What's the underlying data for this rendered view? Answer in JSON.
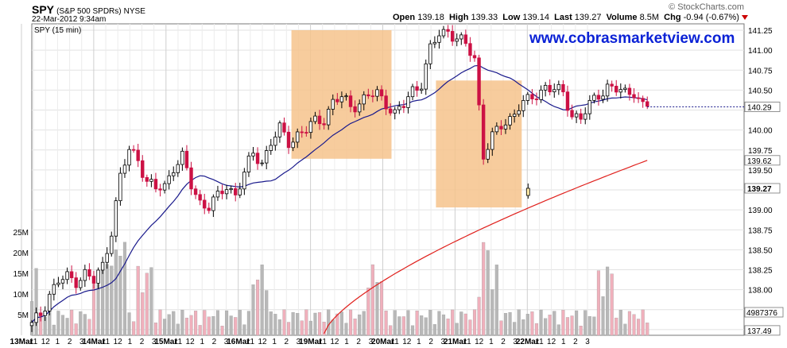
{
  "header": {
    "symbol": "SPY",
    "name": "(S&P 500 SPDRs)",
    "exchange": "NYSE",
    "datetime": "22-Mar-2012 9:34am",
    "brand": "© StockCharts.com",
    "open_label": "Open",
    "open": "139.18",
    "high_label": "High",
    "high": "139.33",
    "low_label": "Low",
    "low": "139.14",
    "last_label": "Last",
    "last": "139.27",
    "volume_label": "Volume",
    "volume": "8.5M",
    "chg_label": "Chg",
    "chg": "-0.94 (-0.67%)"
  },
  "watermark": "www.cobrasmarketview.com",
  "colors": {
    "up": "#000000",
    "down": "#cc1144",
    "ma_short": "#1a1a8c",
    "ma_long": "#e0201c",
    "highlight": "#f6c38c",
    "vol_up": "#b8b8b8",
    "vol_down": "#f0b0bc",
    "grid": "#e2e2e2"
  },
  "chart_data": {
    "type": "candlestick",
    "legend": "SPY (15 min)",
    "price_ticks": [
      137.5,
      137.75,
      138.0,
      138.25,
      138.5,
      138.75,
      139.0,
      139.25,
      139.5,
      139.75,
      140.0,
      140.25,
      140.5,
      140.75,
      141.0,
      141.25
    ],
    "price_tick_labels": [
      "137.5",
      "137.75",
      "138.00",
      "138.25",
      "138.50",
      "138.75",
      "139.00",
      "",
      "139.50",
      "139.75",
      "140.00",
      "",
      "140.50",
      "140.75",
      "141.00",
      "141.25"
    ],
    "ylim": [
      137.42,
      141.35
    ],
    "value_tags": [
      {
        "label": "140.29",
        "value": 140.29
      },
      {
        "label": "139.62",
        "value": 139.62
      },
      {
        "label": "139.27",
        "value": 139.27
      },
      {
        "label": "137.49",
        "value": 137.49
      }
    ],
    "volume_tag": "4987376",
    "volume_ticks": [
      {
        "label": "25M",
        "value": 25
      },
      {
        "label": "20M",
        "value": 20
      },
      {
        "label": "15M",
        "value": 15
      },
      {
        "label": "10M",
        "value": 10
      },
      {
        "label": "5M",
        "value": 5
      }
    ],
    "volume_max": 27,
    "x_labels": [
      {
        "t": "13Mar",
        "bold": true
      },
      {
        "t": "11"
      },
      {
        "t": "12"
      },
      {
        "t": "1"
      },
      {
        "t": "2"
      },
      {
        "t": "3"
      },
      {
        "t": "14Mar",
        "bold": true
      },
      {
        "t": "11"
      },
      {
        "t": "12"
      },
      {
        "t": "1"
      },
      {
        "t": "2"
      },
      {
        "t": "3"
      },
      {
        "t": "15Mar",
        "bold": true
      },
      {
        "t": "11"
      },
      {
        "t": "12"
      },
      {
        "t": "1"
      },
      {
        "t": "2"
      },
      {
        "t": "3"
      },
      {
        "t": "16Mar",
        "bold": true
      },
      {
        "t": "11"
      },
      {
        "t": "12"
      },
      {
        "t": "1"
      },
      {
        "t": "2"
      },
      {
        "t": "3"
      },
      {
        "t": "19Mar",
        "bold": true
      },
      {
        "t": "11"
      },
      {
        "t": "12"
      },
      {
        "t": "1"
      },
      {
        "t": "2"
      },
      {
        "t": "3"
      },
      {
        "t": "20Mar",
        "bold": true
      },
      {
        "t": "11"
      },
      {
        "t": "12"
      },
      {
        "t": "1"
      },
      {
        "t": "2"
      },
      {
        "t": "3"
      },
      {
        "t": "21Mar",
        "bold": true
      },
      {
        "t": "11"
      },
      {
        "t": "12"
      },
      {
        "t": "1"
      },
      {
        "t": "2"
      },
      {
        "t": "3"
      },
      {
        "t": "22Mar",
        "bold": true
      },
      {
        "t": "11"
      },
      {
        "t": "12"
      },
      {
        "t": "1"
      },
      {
        "t": "2"
      },
      {
        "t": "3"
      }
    ],
    "highlight_boxes": [
      {
        "from_day": "19Mar",
        "to_day": "20Mar",
        "price_top": 141.25,
        "price_bottom": 139.64
      },
      {
        "from_day": "21Mar",
        "to_day": "22Mar",
        "price_top": 140.62,
        "price_bottom": 139.03
      }
    ],
    "close_path": [
      [
        0,
        137.55
      ],
      [
        2,
        137.7
      ],
      [
        4,
        137.95
      ],
      [
        6,
        138.1
      ],
      [
        8,
        138.15
      ],
      [
        10,
        138.12
      ],
      [
        12,
        138.2
      ],
      [
        14,
        138.1
      ],
      [
        16,
        138.3
      ],
      [
        18,
        138.75
      ],
      [
        20,
        139.4
      ],
      [
        22,
        139.75
      ],
      [
        24,
        139.65
      ],
      [
        26,
        139.35
      ],
      [
        28,
        139.25
      ],
      [
        30,
        139.3
      ],
      [
        32,
        139.55
      ],
      [
        34,
        139.65
      ],
      [
        36,
        139.3
      ],
      [
        38,
        139.1
      ],
      [
        40,
        139.05
      ],
      [
        42,
        139.15
      ],
      [
        44,
        139.3
      ],
      [
        46,
        139.2
      ],
      [
        48,
        139.45
      ],
      [
        50,
        139.7
      ],
      [
        52,
        139.6
      ],
      [
        54,
        139.85
      ],
      [
        56,
        140.0
      ],
      [
        58,
        139.85
      ],
      [
        60,
        139.95
      ],
      [
        62,
        140.0
      ],
      [
        64,
        140.1
      ],
      [
        66,
        140.15
      ],
      [
        68,
        140.35
      ],
      [
        70,
        140.4
      ],
      [
        72,
        140.3
      ],
      [
        74,
        140.35
      ],
      [
        76,
        140.42
      ],
      [
        78,
        140.45
      ],
      [
        80,
        140.35
      ],
      [
        82,
        140.2
      ],
      [
        84,
        140.3
      ],
      [
        86,
        140.5
      ],
      [
        88,
        140.6
      ],
      [
        90,
        141.0
      ],
      [
        92,
        141.2
      ],
      [
        94,
        141.25
      ],
      [
        96,
        141.15
      ],
      [
        98,
        141.05
      ],
      [
        100,
        140.9
      ],
      [
        102,
        139.7
      ],
      [
        104,
        139.9
      ],
      [
        106,
        140.05
      ],
      [
        108,
        140.15
      ],
      [
        110,
        140.3
      ],
      [
        112,
        140.35
      ],
      [
        114,
        140.45
      ],
      [
        116,
        140.55
      ],
      [
        118,
        140.5
      ],
      [
        120,
        140.45
      ],
      [
        122,
        140.2
      ],
      [
        124,
        140.15
      ],
      [
        126,
        140.3
      ],
      [
        128,
        140.45
      ],
      [
        130,
        140.55
      ],
      [
        132,
        140.5
      ],
      [
        134,
        140.45
      ],
      [
        136,
        140.5
      ],
      [
        138,
        140.3
      ]
    ],
    "last_open": 139.18,
    "last_high": 139.33,
    "last_low": 139.14,
    "last_close": 139.27
  }
}
